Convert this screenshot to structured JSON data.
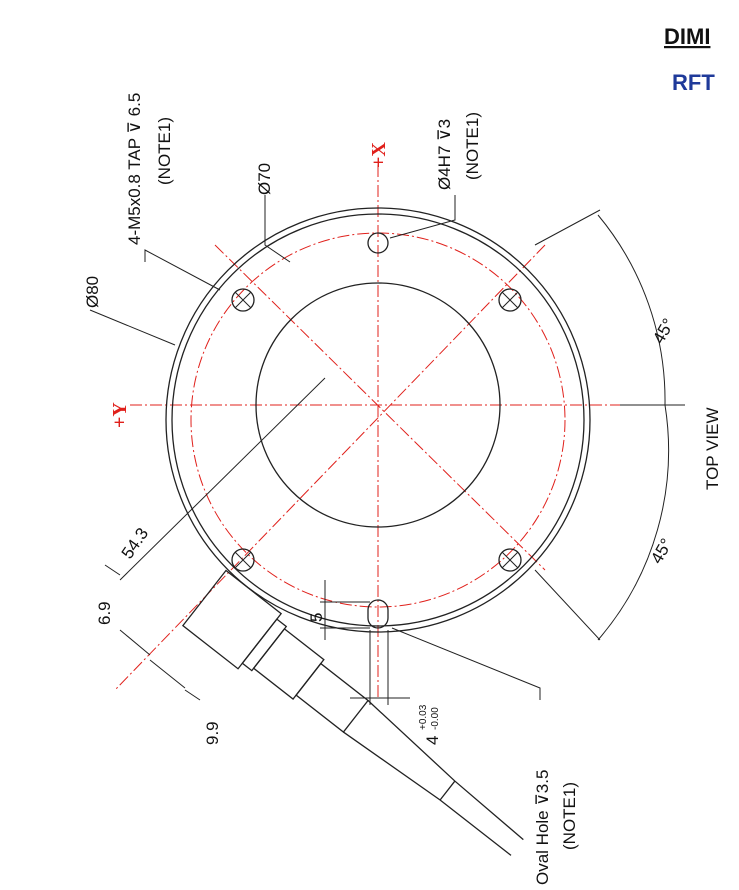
{
  "header": {
    "title": "DIMI",
    "subtitle": "RFT"
  },
  "labels": {
    "tap": "4-M5x0.8 TAP ⊽ 6.5",
    "tap_note": "(NOTE1)",
    "d70": "Ø70",
    "pin": "Ø4H7 ⊽3",
    "pin_note": "(NOTE1)",
    "plus_x": "+X",
    "d80": "Ø80",
    "plus_y": "+Y",
    "angle_top": "45°",
    "angle_bottom": "45°",
    "view": "TOP VIEW",
    "d54": "54.3",
    "d69": "6.9",
    "d99": "9.9",
    "d5": "5",
    "d4": "4",
    "tol_plus": "+0.03",
    "tol_minus": "-0.00",
    "oval": "Oval Hole ⊽3.5",
    "oval_note": "(NOTE1)"
  }
}
